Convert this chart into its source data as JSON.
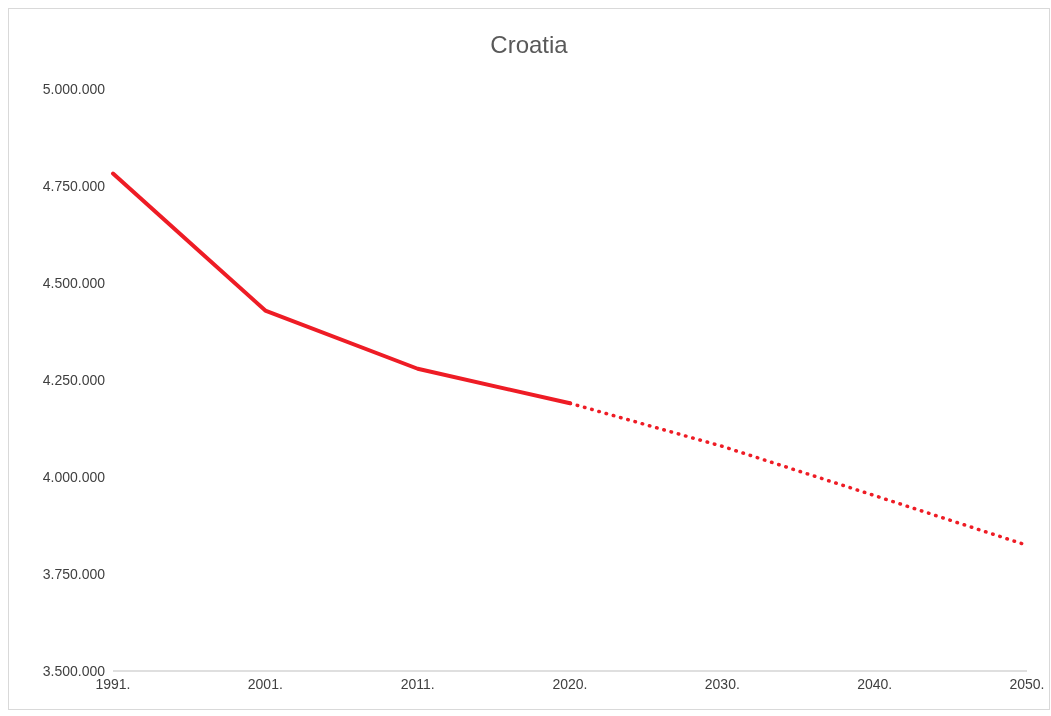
{
  "chart_data": {
    "type": "line",
    "title": "Croatia",
    "categories": [
      "1991.",
      "2001.",
      "2011.",
      "2020.",
      "2030.",
      "2040.",
      "2050."
    ],
    "series": [
      {
        "color": "#ee1c25",
        "line_style": "solid",
        "values": [
          4782000,
          4429000,
          4279000,
          4190000,
          null,
          null,
          null
        ]
      },
      {
        "color": "#ee1c25",
        "line_style": "dotted",
        "values": [
          null,
          null,
          null,
          4190000,
          4079000,
          3952000,
          3824000
        ]
      }
    ],
    "ylim": [
      3500000,
      5000000
    ],
    "yticks": [
      {
        "value": 3500000,
        "label": "3.500.000"
      },
      {
        "value": 3750000,
        "label": "3.750.000"
      },
      {
        "value": 4000000,
        "label": "4.000.000"
      },
      {
        "value": 4250000,
        "label": "4.250.000"
      },
      {
        "value": 4500000,
        "label": "4.500.000"
      },
      {
        "value": 4750000,
        "label": "4.750.000"
      },
      {
        "value": 5000000,
        "label": "5.000.000"
      }
    ],
    "marker": "none"
  }
}
